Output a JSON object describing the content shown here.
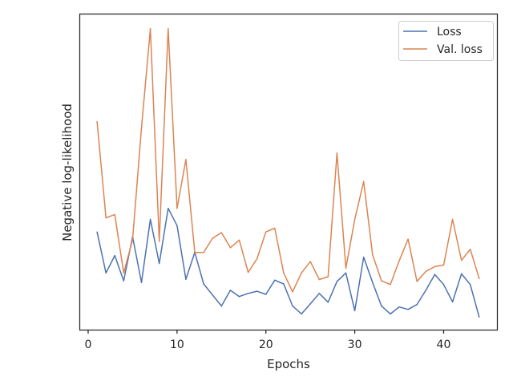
{
  "chart_data": {
    "type": "line",
    "title": "",
    "xlabel": "Epochs",
    "ylabel": "Negative log-likelihood",
    "xlim": [
      -0.9,
      46.0
    ],
    "ylim": [
      0.0,
      1.0
    ],
    "xticks": [
      0,
      10,
      20,
      30,
      40
    ],
    "yticks_visible": false,
    "grid": false,
    "legend_position": "top-right",
    "x": [
      1,
      2,
      3,
      4,
      5,
      6,
      7,
      8,
      9,
      10,
      11,
      12,
      13,
      14,
      15,
      16,
      17,
      18,
      19,
      20,
      21,
      22,
      23,
      24,
      25,
      26,
      27,
      28,
      29,
      30,
      31,
      32,
      33,
      34,
      35,
      36,
      37,
      38,
      39,
      40,
      41,
      42,
      43,
      44
    ],
    "series": [
      {
        "name": "Loss",
        "color": "#4c72b0",
        "values": [
          0.31,
          0.18,
          0.235,
          0.155,
          0.295,
          0.15,
          0.35,
          0.21,
          0.385,
          0.33,
          0.16,
          0.245,
          0.145,
          0.11,
          0.075,
          0.125,
          0.105,
          0.115,
          0.122,
          0.112,
          0.157,
          0.145,
          0.075,
          0.05,
          0.082,
          0.115,
          0.087,
          0.153,
          0.18,
          0.06,
          0.23,
          0.15,
          0.075,
          0.05,
          0.072,
          0.064,
          0.08,
          0.125,
          0.175,
          0.143,
          0.088,
          0.177,
          0.143,
          0.04
        ]
      },
      {
        "name": "Val. loss",
        "color": "#dd8452",
        "values": [
          0.66,
          0.355,
          0.365,
          0.18,
          0.285,
          0.64,
          0.955,
          0.28,
          0.955,
          0.385,
          0.54,
          0.245,
          0.245,
          0.29,
          0.308,
          0.26,
          0.284,
          0.182,
          0.225,
          0.31,
          0.322,
          0.18,
          0.12,
          0.18,
          0.216,
          0.159,
          0.168,
          0.56,
          0.195,
          0.35,
          0.47,
          0.238,
          0.155,
          0.143,
          0.218,
          0.287,
          0.153,
          0.185,
          0.2,
          0.205,
          0.35,
          0.22,
          0.255,
          0.162
        ]
      }
    ]
  }
}
